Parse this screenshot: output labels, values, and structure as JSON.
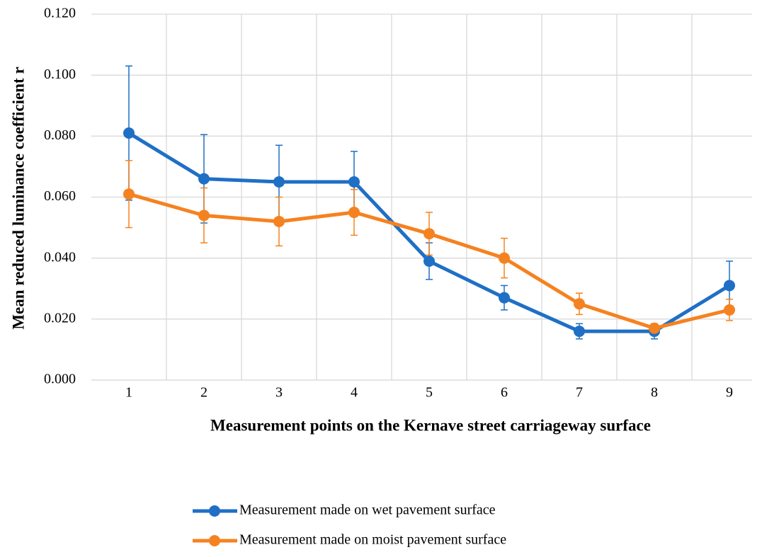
{
  "chart_data": {
    "type": "line",
    "x_label": "Measurement points on the Kernave street carriageway surface",
    "y_label": "Mean reduced luminance coefficient r",
    "categories": [
      "1",
      "2",
      "3",
      "4",
      "5",
      "6",
      "7",
      "8",
      "9"
    ],
    "series": [
      {
        "name": "Measurement made on wet pavement surface",
        "color": "#1f6fc5",
        "values": [
          0.081,
          0.066,
          0.065,
          0.065,
          0.039,
          0.027,
          0.016,
          0.016,
          0.031
        ],
        "errors": [
          0.022,
          0.0145,
          0.012,
          0.01,
          0.006,
          0.004,
          0.0025,
          0.0025,
          0.008
        ]
      },
      {
        "name": "Measurement made on moist pavement surface",
        "color": "#f58220",
        "values": [
          0.061,
          0.054,
          0.052,
          0.055,
          0.048,
          0.04,
          0.025,
          0.017,
          0.023
        ],
        "errors": [
          0.011,
          0.009,
          0.008,
          0.0075,
          0.007,
          0.0065,
          0.0035,
          0.0015,
          0.0035
        ]
      }
    ],
    "ylim": [
      0,
      0.12
    ],
    "yticks": [
      {
        "value": 0,
        "label": "0.000"
      },
      {
        "value": 0.02,
        "label": "0.020"
      },
      {
        "value": 0.04,
        "label": "0.040"
      },
      {
        "value": 0.06,
        "label": "0.060"
      },
      {
        "value": 0.08,
        "label": "0.080"
      },
      {
        "value": 0.1,
        "label": "0.100"
      },
      {
        "value": 0.12,
        "label": "0.120"
      }
    ],
    "grid": true,
    "legend": "bottom"
  }
}
